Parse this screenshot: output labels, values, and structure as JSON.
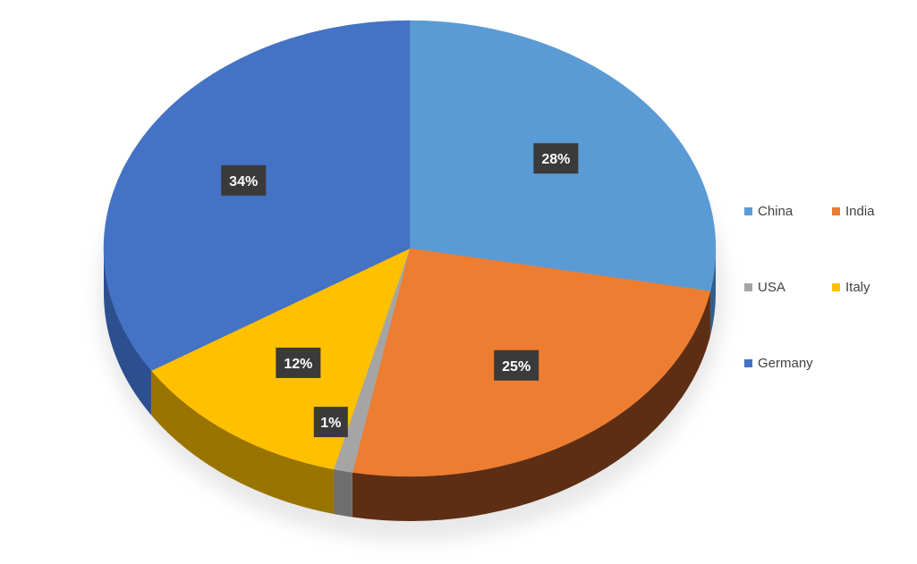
{
  "chart_data": {
    "type": "pie",
    "title": "",
    "slices": [
      {
        "name": "China",
        "value": 28,
        "label": "28%",
        "color": "#5B9BD5",
        "side": "#2F5F8C"
      },
      {
        "name": "India",
        "value": 25,
        "label": "25%",
        "color": "#ED7D31",
        "side": "#5E2E14"
      },
      {
        "name": "USA",
        "value": 1,
        "label": "1%",
        "color": "#A5A5A5",
        "side": "#6E6E6E"
      },
      {
        "name": "Italy",
        "value": 12,
        "label": "12%",
        "color": "#FFC000",
        "side": "#9A7400"
      },
      {
        "name": "Germany",
        "value": 34,
        "label": "34%",
        "color": "#4472C4",
        "side": "#2C4F8E"
      }
    ],
    "legend_position": "right",
    "data_label_style": "dark-box-white-text"
  },
  "legend": [
    {
      "label": "China",
      "color": "#5B9BD5"
    },
    {
      "label": "India",
      "color": "#ED7D31"
    },
    {
      "label": "USA",
      "color": "#A5A5A5"
    },
    {
      "label": "Italy",
      "color": "#FFC000"
    },
    {
      "label": "Germany",
      "color": "#4472C4"
    }
  ]
}
